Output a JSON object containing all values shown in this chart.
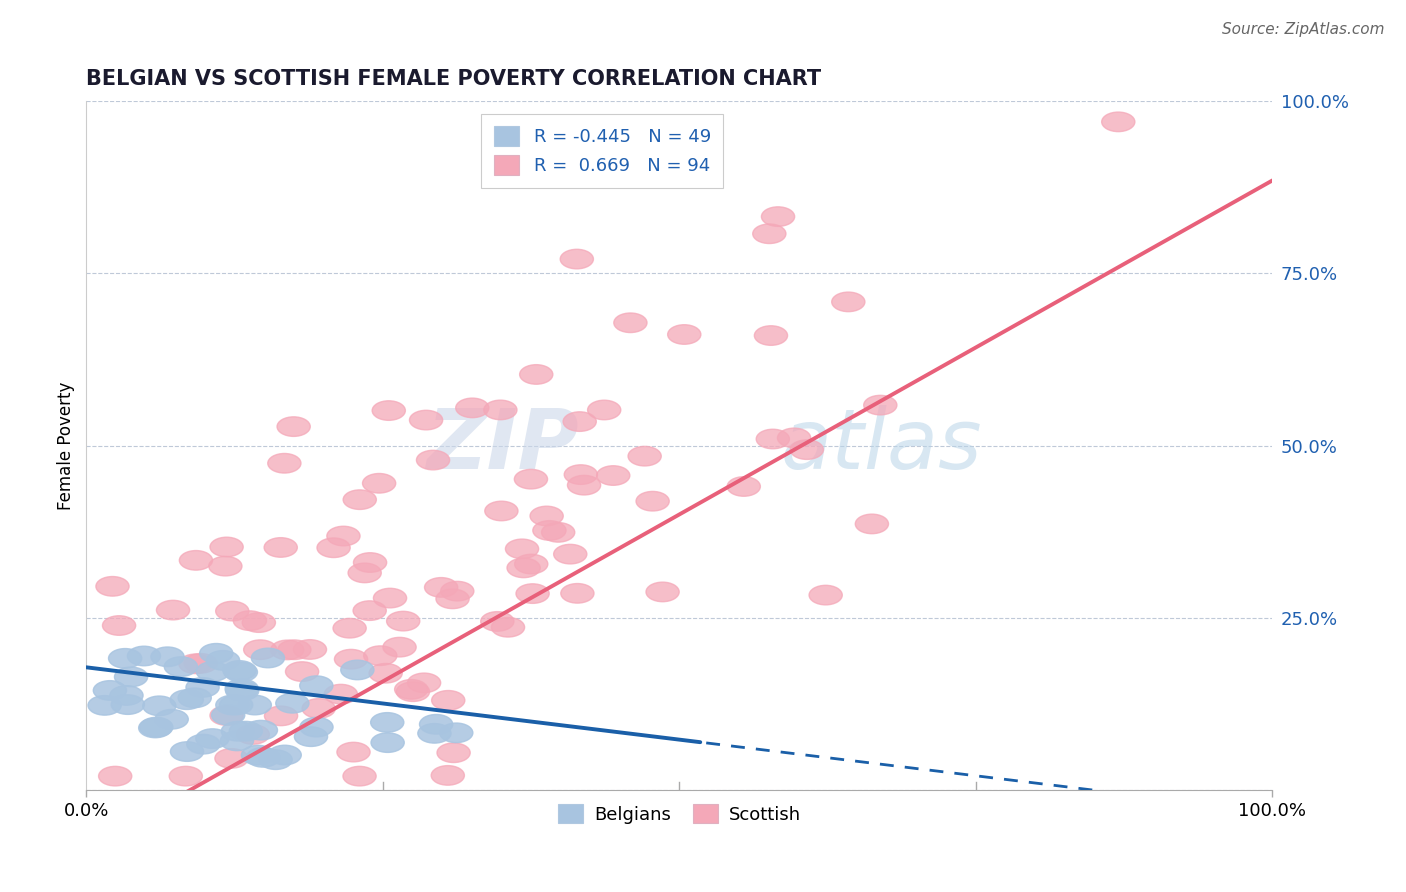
{
  "title": "BELGIAN VS SCOTTISH FEMALE POVERTY CORRELATION CHART",
  "source_text": "Source: ZipAtlas.com",
  "ylabel": "Female Poverty",
  "belgian_color": "#a8c4e0",
  "scottish_color": "#f4a8b8",
  "belgian_line_color": "#1a5fa8",
  "scottish_line_color": "#e8607a",
  "title_color": "#1a1a2e",
  "source_color": "#666666",
  "watermark_color": "#ccd8e8",
  "r_value_color": "#2060b0",
  "grid_color": "#b8c4d4",
  "background_color": "#ffffff",
  "belgian_R": -0.445,
  "scottish_R": 0.669,
  "belgian_N": 49,
  "scottish_N": 94,
  "xlim": [
    0.0,
    1.0
  ],
  "ylim": [
    0.0,
    1.0
  ],
  "bel_line_x_solid_end": 0.52,
  "scot_line_intercept": -0.085,
  "scot_line_slope": 0.97,
  "bel_line_intercept": 0.178,
  "bel_line_slope": -0.21
}
